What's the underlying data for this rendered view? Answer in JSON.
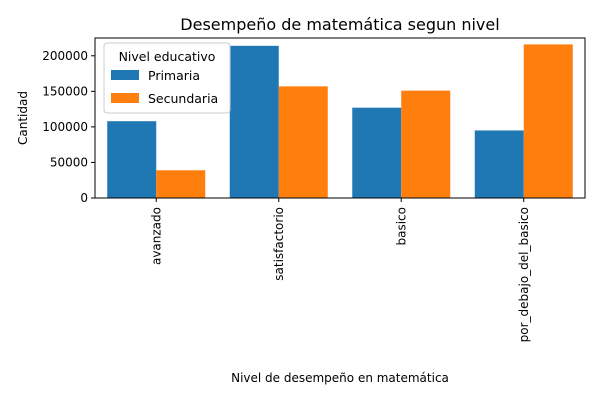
{
  "chart_data": {
    "type": "bar",
    "title": "Desempeño de matemática segun nivel",
    "xlabel": "Nivel de desempeño en matemática",
    "ylabel": "Cantidad",
    "categories": [
      "avanzado",
      "satisfactorio",
      "basico",
      "por_debajo_del_basico"
    ],
    "series": [
      {
        "name": "Primaria",
        "color": "#1f77b4",
        "values": [
          108000,
          214000,
          127000,
          95000
        ]
      },
      {
        "name": "Secundaria",
        "color": "#ff7f0e",
        "values": [
          39000,
          157000,
          151000,
          216000
        ]
      }
    ],
    "ylim": [
      0,
      225000
    ],
    "yticks": [
      0,
      50000,
      100000,
      150000,
      200000
    ],
    "legend": {
      "title": "Nivel educativo",
      "position": "top-left"
    },
    "grid": false
  }
}
